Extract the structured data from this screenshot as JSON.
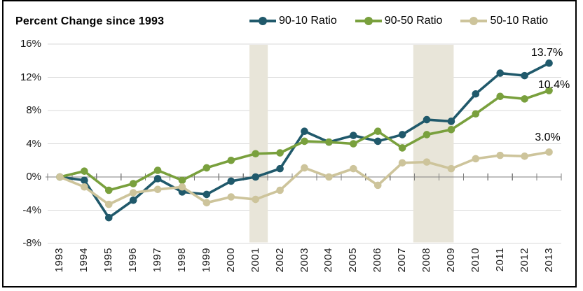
{
  "title": "Percent Change since 1993",
  "chart_data": {
    "type": "line",
    "title": "Percent Change since 1993",
    "x": [
      "1993",
      "1994",
      "1995",
      "1996",
      "1997",
      "1998",
      "1999",
      "2000",
      "2001",
      "2002",
      "2003",
      "2004",
      "2005",
      "2006",
      "2007",
      "2008",
      "2009",
      "2010",
      "2011",
      "2012",
      "2013"
    ],
    "series": [
      {
        "name": "90-10 Ratio",
        "color": "#20596B",
        "values": [
          0.0,
          -0.4,
          -4.9,
          -2.8,
          -0.2,
          -1.8,
          -2.1,
          -0.5,
          0.0,
          1.0,
          5.5,
          4.2,
          5.0,
          4.3,
          5.1,
          6.9,
          6.7,
          10.0,
          12.5,
          12.2,
          13.7
        ],
        "end_label": "13.7%"
      },
      {
        "name": "90-50 Ratio",
        "color": "#79A03D",
        "values": [
          0.0,
          0.7,
          -1.6,
          -0.8,
          0.8,
          -0.4,
          1.1,
          2.0,
          2.8,
          2.9,
          4.3,
          4.2,
          4.0,
          5.5,
          3.5,
          5.1,
          5.7,
          7.6,
          9.7,
          9.4,
          10.4
        ],
        "end_label": "10.4%"
      },
      {
        "name": "50-10 Ratio",
        "color": "#CDC49B",
        "values": [
          0.0,
          -1.2,
          -3.3,
          -1.9,
          -1.5,
          -1.2,
          -3.1,
          -2.4,
          -2.7,
          -1.6,
          1.1,
          0.0,
          1.0,
          -1.0,
          1.7,
          1.8,
          1.0,
          2.2,
          2.6,
          2.5,
          3.0
        ],
        "end_label": "3.0%"
      }
    ],
    "y_ticks": [
      "16%",
      "12%",
      "8%",
      "4%",
      "0%",
      "-4%",
      "-8%"
    ],
    "ylim": [
      -8,
      16
    ],
    "shaded_bands": [
      [
        2000.75,
        2001.5
      ],
      [
        2007.45,
        2009.1
      ]
    ],
    "band_color": "#E8E5D9",
    "gridline_color": "#D9D9D9",
    "axis_color": "#7F7F7F",
    "legend_position": "top-right",
    "grid": "horizontal"
  }
}
